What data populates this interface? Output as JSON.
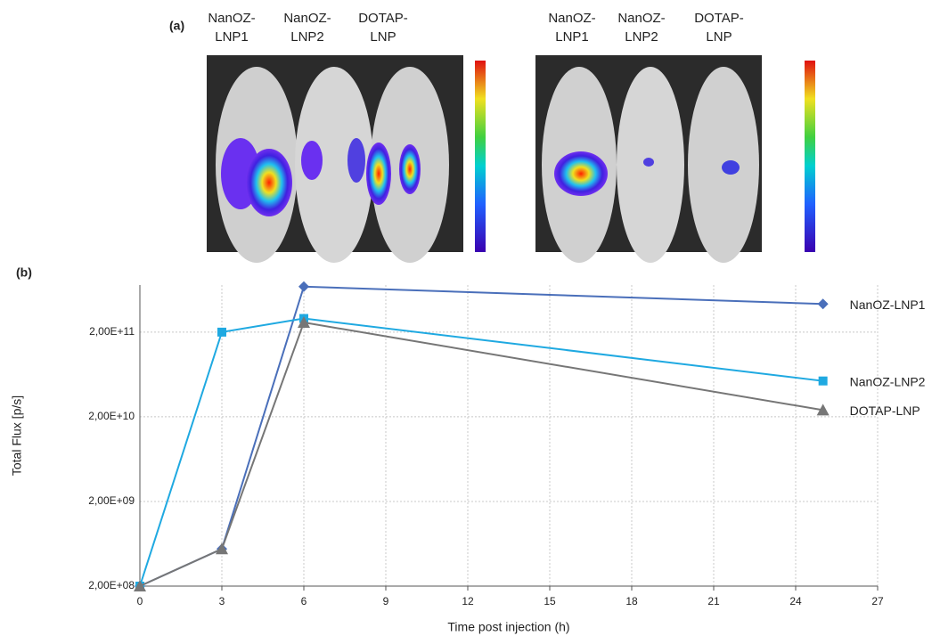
{
  "panel_a": {
    "label": "(a)",
    "groups": [
      {
        "labels": [
          [
            "NanOZ-",
            "LNP1"
          ],
          [
            "NanOZ-",
            "LNP2"
          ],
          [
            "DOTAP-",
            "LNP"
          ]
        ]
      },
      {
        "labels": [
          [
            "NanOZ-",
            "LNP1"
          ],
          [
            "NanOZ-",
            "LNP2"
          ],
          [
            "DOTAP-",
            "LNP"
          ]
        ]
      }
    ]
  },
  "chart_data": {
    "type": "line",
    "panel_label": "(b)",
    "x_label": "Time post injection (h)",
    "y_label": "Total Flux [p/s]",
    "x": [
      0,
      3,
      6,
      25
    ],
    "series": [
      {
        "name": "NanOZ-LNP1",
        "color": "#4a6fba",
        "marker": "diamond",
        "values": [
          200000000,
          550000000,
          690000000000,
          430000000000
        ]
      },
      {
        "name": "NanOZ-LNP2",
        "color": "#1fa9e1",
        "marker": "square",
        "values": [
          200000000,
          200000000000,
          290000000000,
          53000000000
        ]
      },
      {
        "name": "DOTAP-LNP",
        "color": "#767676",
        "marker": "triangle",
        "values": [
          200000000,
          550000000,
          260000000000,
          24000000000
        ]
      }
    ],
    "xlim": [
      0,
      27
    ],
    "xticks": [
      0,
      3,
      6,
      9,
      12,
      15,
      18,
      21,
      24,
      27
    ],
    "ylim": [
      200000000,
      720000000000
    ],
    "log_y": true,
    "yticks": [
      {
        "value": 200000000,
        "label": "2,00E+08"
      },
      {
        "value": 2000000000,
        "label": "2,00E+09"
      },
      {
        "value": 20000000000,
        "label": "2,00E+10"
      },
      {
        "value": 200000000000,
        "label": "2,00E+11"
      }
    ],
    "grid": true
  }
}
